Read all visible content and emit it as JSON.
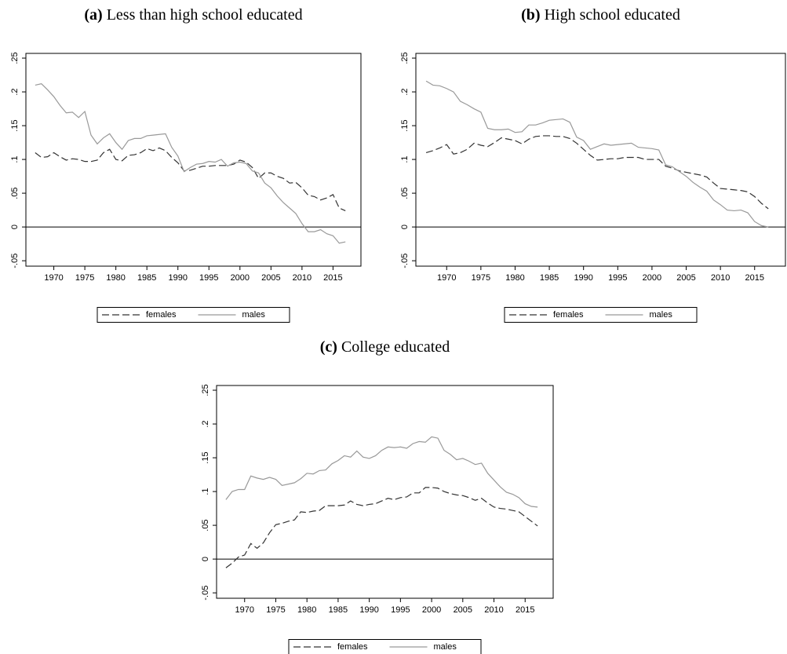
{
  "chart_data": [
    {
      "type": "line",
      "panel": "(a)",
      "title": "Less than high school educated",
      "x": [
        1967,
        1968,
        1969,
        1970,
        1971,
        1972,
        1973,
        1974,
        1975,
        1976,
        1977,
        1978,
        1979,
        1980,
        1981,
        1982,
        1983,
        1984,
        1985,
        1986,
        1987,
        1988,
        1989,
        1990,
        1991,
        1992,
        1993,
        1994,
        1995,
        1996,
        1997,
        1998,
        1999,
        2000,
        2001,
        2002,
        2003,
        2004,
        2005,
        2006,
        2007,
        2008,
        2009,
        2010,
        2011,
        2012,
        2013,
        2014,
        2015,
        2016,
        2017
      ],
      "series": [
        {
          "name": "females",
          "color": "#333333",
          "line_style": "dashed",
          "values": [
            0.11,
            0.103,
            0.104,
            0.11,
            0.104,
            0.099,
            0.101,
            0.1,
            0.097,
            0.097,
            0.099,
            0.11,
            0.115,
            0.1,
            0.098,
            0.106,
            0.107,
            0.11,
            0.116,
            0.113,
            0.117,
            0.113,
            0.103,
            0.095,
            0.083,
            0.084,
            0.087,
            0.09,
            0.09,
            0.091,
            0.091,
            0.091,
            0.093,
            0.099,
            0.096,
            0.088,
            0.072,
            0.08,
            0.08,
            0.075,
            0.072,
            0.065,
            0.066,
            0.058,
            0.047,
            0.045,
            0.04,
            0.043,
            0.048,
            0.028,
            0.024
          ]
        },
        {
          "name": "males",
          "color": "#999999",
          "line_style": "solid",
          "values": [
            0.21,
            0.212,
            0.203,
            0.193,
            0.18,
            0.169,
            0.17,
            0.162,
            0.171,
            0.136,
            0.123,
            0.132,
            0.138,
            0.125,
            0.115,
            0.128,
            0.131,
            0.131,
            0.135,
            0.136,
            0.137,
            0.138,
            0.118,
            0.105,
            0.082,
            0.088,
            0.093,
            0.094,
            0.097,
            0.096,
            0.1,
            0.09,
            0.095,
            0.096,
            0.094,
            0.083,
            0.08,
            0.065,
            0.058,
            0.046,
            0.036,
            0.028,
            0.02,
            0.005,
            -0.007,
            -0.007,
            -0.004,
            -0.01,
            -0.013,
            -0.024,
            -0.022
          ]
        }
      ],
      "xlim": [
        1965.5,
        2019.5
      ],
      "xticks": [
        1970,
        1975,
        1980,
        1985,
        1990,
        1995,
        2000,
        2005,
        2010,
        2015
      ],
      "ylim": [
        -0.058,
        0.257
      ],
      "yticks": [
        {
          "value": -0.05,
          "label": "-.05"
        },
        0,
        {
          "value": 0.05,
          "label": ".05"
        },
        {
          "value": 0.1,
          "label": ".1"
        },
        {
          "value": 0.15,
          "label": ".15"
        },
        {
          "value": 0.2,
          "label": ".2"
        },
        {
          "value": 0.25,
          "label": ".25"
        }
      ],
      "reference_line": 0,
      "legend": "bottom"
    },
    {
      "type": "line",
      "panel": "(b)",
      "title": "High school educated",
      "x": [
        1967,
        1968,
        1969,
        1970,
        1971,
        1972,
        1973,
        1974,
        1975,
        1976,
        1977,
        1978,
        1979,
        1980,
        1981,
        1982,
        1983,
        1984,
        1985,
        1986,
        1987,
        1988,
        1989,
        1990,
        1991,
        1992,
        1993,
        1994,
        1995,
        1996,
        1997,
        1998,
        1999,
        2000,
        2001,
        2002,
        2003,
        2004,
        2005,
        2006,
        2007,
        2008,
        2009,
        2010,
        2011,
        2012,
        2013,
        2014,
        2015,
        2016,
        2017
      ],
      "series": [
        {
          "name": "females",
          "color": "#333333",
          "line_style": "dashed",
          "values": [
            0.11,
            0.113,
            0.117,
            0.122,
            0.108,
            0.11,
            0.115,
            0.124,
            0.121,
            0.119,
            0.125,
            0.132,
            0.13,
            0.128,
            0.123,
            0.13,
            0.134,
            0.135,
            0.135,
            0.134,
            0.134,
            0.131,
            0.124,
            0.115,
            0.106,
            0.099,
            0.1,
            0.101,
            0.101,
            0.103,
            0.103,
            0.103,
            0.1,
            0.1,
            0.1,
            0.09,
            0.087,
            0.083,
            0.081,
            0.079,
            0.077,
            0.074,
            0.065,
            0.057,
            0.056,
            0.055,
            0.054,
            0.052,
            0.045,
            0.035,
            0.027
          ]
        },
        {
          "name": "males",
          "color": "#999999",
          "line_style": "solid",
          "values": [
            0.216,
            0.21,
            0.209,
            0.205,
            0.2,
            0.186,
            0.181,
            0.175,
            0.17,
            0.146,
            0.144,
            0.144,
            0.145,
            0.14,
            0.141,
            0.151,
            0.151,
            0.154,
            0.158,
            0.159,
            0.16,
            0.155,
            0.133,
            0.128,
            0.115,
            0.119,
            0.123,
            0.121,
            0.122,
            0.123,
            0.124,
            0.118,
            0.117,
            0.116,
            0.114,
            0.092,
            0.089,
            0.082,
            0.075,
            0.066,
            0.059,
            0.053,
            0.04,
            0.033,
            0.025,
            0.024,
            0.025,
            0.021,
            0.008,
            0.002,
            0.0
          ]
        }
      ],
      "xlim": [
        1965.5,
        2019.5
      ],
      "xticks": [
        1970,
        1975,
        1980,
        1985,
        1990,
        1995,
        2000,
        2005,
        2010,
        2015
      ],
      "ylim": [
        -0.058,
        0.257
      ],
      "yticks": [
        {
          "value": -0.05,
          "label": "-.05"
        },
        0,
        {
          "value": 0.05,
          "label": ".05"
        },
        {
          "value": 0.1,
          "label": ".1"
        },
        {
          "value": 0.15,
          "label": ".15"
        },
        {
          "value": 0.2,
          "label": ".2"
        },
        {
          "value": 0.25,
          "label": ".25"
        }
      ],
      "reference_line": 0,
      "legend": "bottom"
    },
    {
      "type": "line",
      "panel": "(c)",
      "title": "College educated",
      "x": [
        1967,
        1968,
        1969,
        1970,
        1971,
        1972,
        1973,
        1974,
        1975,
        1976,
        1977,
        1978,
        1979,
        1980,
        1981,
        1982,
        1983,
        1984,
        1985,
        1986,
        1987,
        1988,
        1989,
        1990,
        1991,
        1992,
        1993,
        1994,
        1995,
        1996,
        1997,
        1998,
        1999,
        2000,
        2001,
        2002,
        2003,
        2004,
        2005,
        2006,
        2007,
        2008,
        2009,
        2010,
        2011,
        2012,
        2013,
        2014,
        2015,
        2016,
        2017
      ],
      "series": [
        {
          "name": "females",
          "color": "#333333",
          "line_style": "dashed",
          "values": [
            -0.013,
            -0.006,
            0.003,
            0.006,
            0.023,
            0.016,
            0.024,
            0.039,
            0.051,
            0.053,
            0.056,
            0.058,
            0.07,
            0.069,
            0.071,
            0.072,
            0.079,
            0.079,
            0.079,
            0.08,
            0.086,
            0.081,
            0.079,
            0.081,
            0.082,
            0.086,
            0.09,
            0.088,
            0.091,
            0.092,
            0.098,
            0.098,
            0.106,
            0.106,
            0.105,
            0.1,
            0.097,
            0.095,
            0.094,
            0.091,
            0.087,
            0.09,
            0.083,
            0.077,
            0.075,
            0.074,
            0.072,
            0.07,
            0.063,
            0.056,
            0.049
          ]
        },
        {
          "name": "males",
          "color": "#999999",
          "line_style": "solid",
          "values": [
            0.088,
            0.1,
            0.103,
            0.103,
            0.123,
            0.12,
            0.118,
            0.121,
            0.118,
            0.109,
            0.111,
            0.113,
            0.119,
            0.127,
            0.126,
            0.131,
            0.132,
            0.141,
            0.146,
            0.153,
            0.151,
            0.16,
            0.151,
            0.149,
            0.153,
            0.161,
            0.166,
            0.165,
            0.166,
            0.164,
            0.171,
            0.174,
            0.173,
            0.181,
            0.179,
            0.161,
            0.155,
            0.147,
            0.149,
            0.145,
            0.14,
            0.142,
            0.127,
            0.117,
            0.107,
            0.099,
            0.096,
            0.091,
            0.082,
            0.078,
            0.077
          ]
        }
      ],
      "xlim": [
        1965.5,
        2019.5
      ],
      "xticks": [
        1970,
        1975,
        1980,
        1985,
        1990,
        1995,
        2000,
        2005,
        2010,
        2015
      ],
      "ylim": [
        -0.058,
        0.257
      ],
      "yticks": [
        {
          "value": -0.05,
          "label": "-.05"
        },
        0,
        {
          "value": 0.05,
          "label": ".05"
        },
        {
          "value": 0.1,
          "label": ".1"
        },
        {
          "value": 0.15,
          "label": ".15"
        },
        {
          "value": 0.2,
          "label": ".2"
        },
        {
          "value": 0.25,
          "label": ".25"
        }
      ],
      "reference_line": 0,
      "legend": "bottom"
    }
  ]
}
